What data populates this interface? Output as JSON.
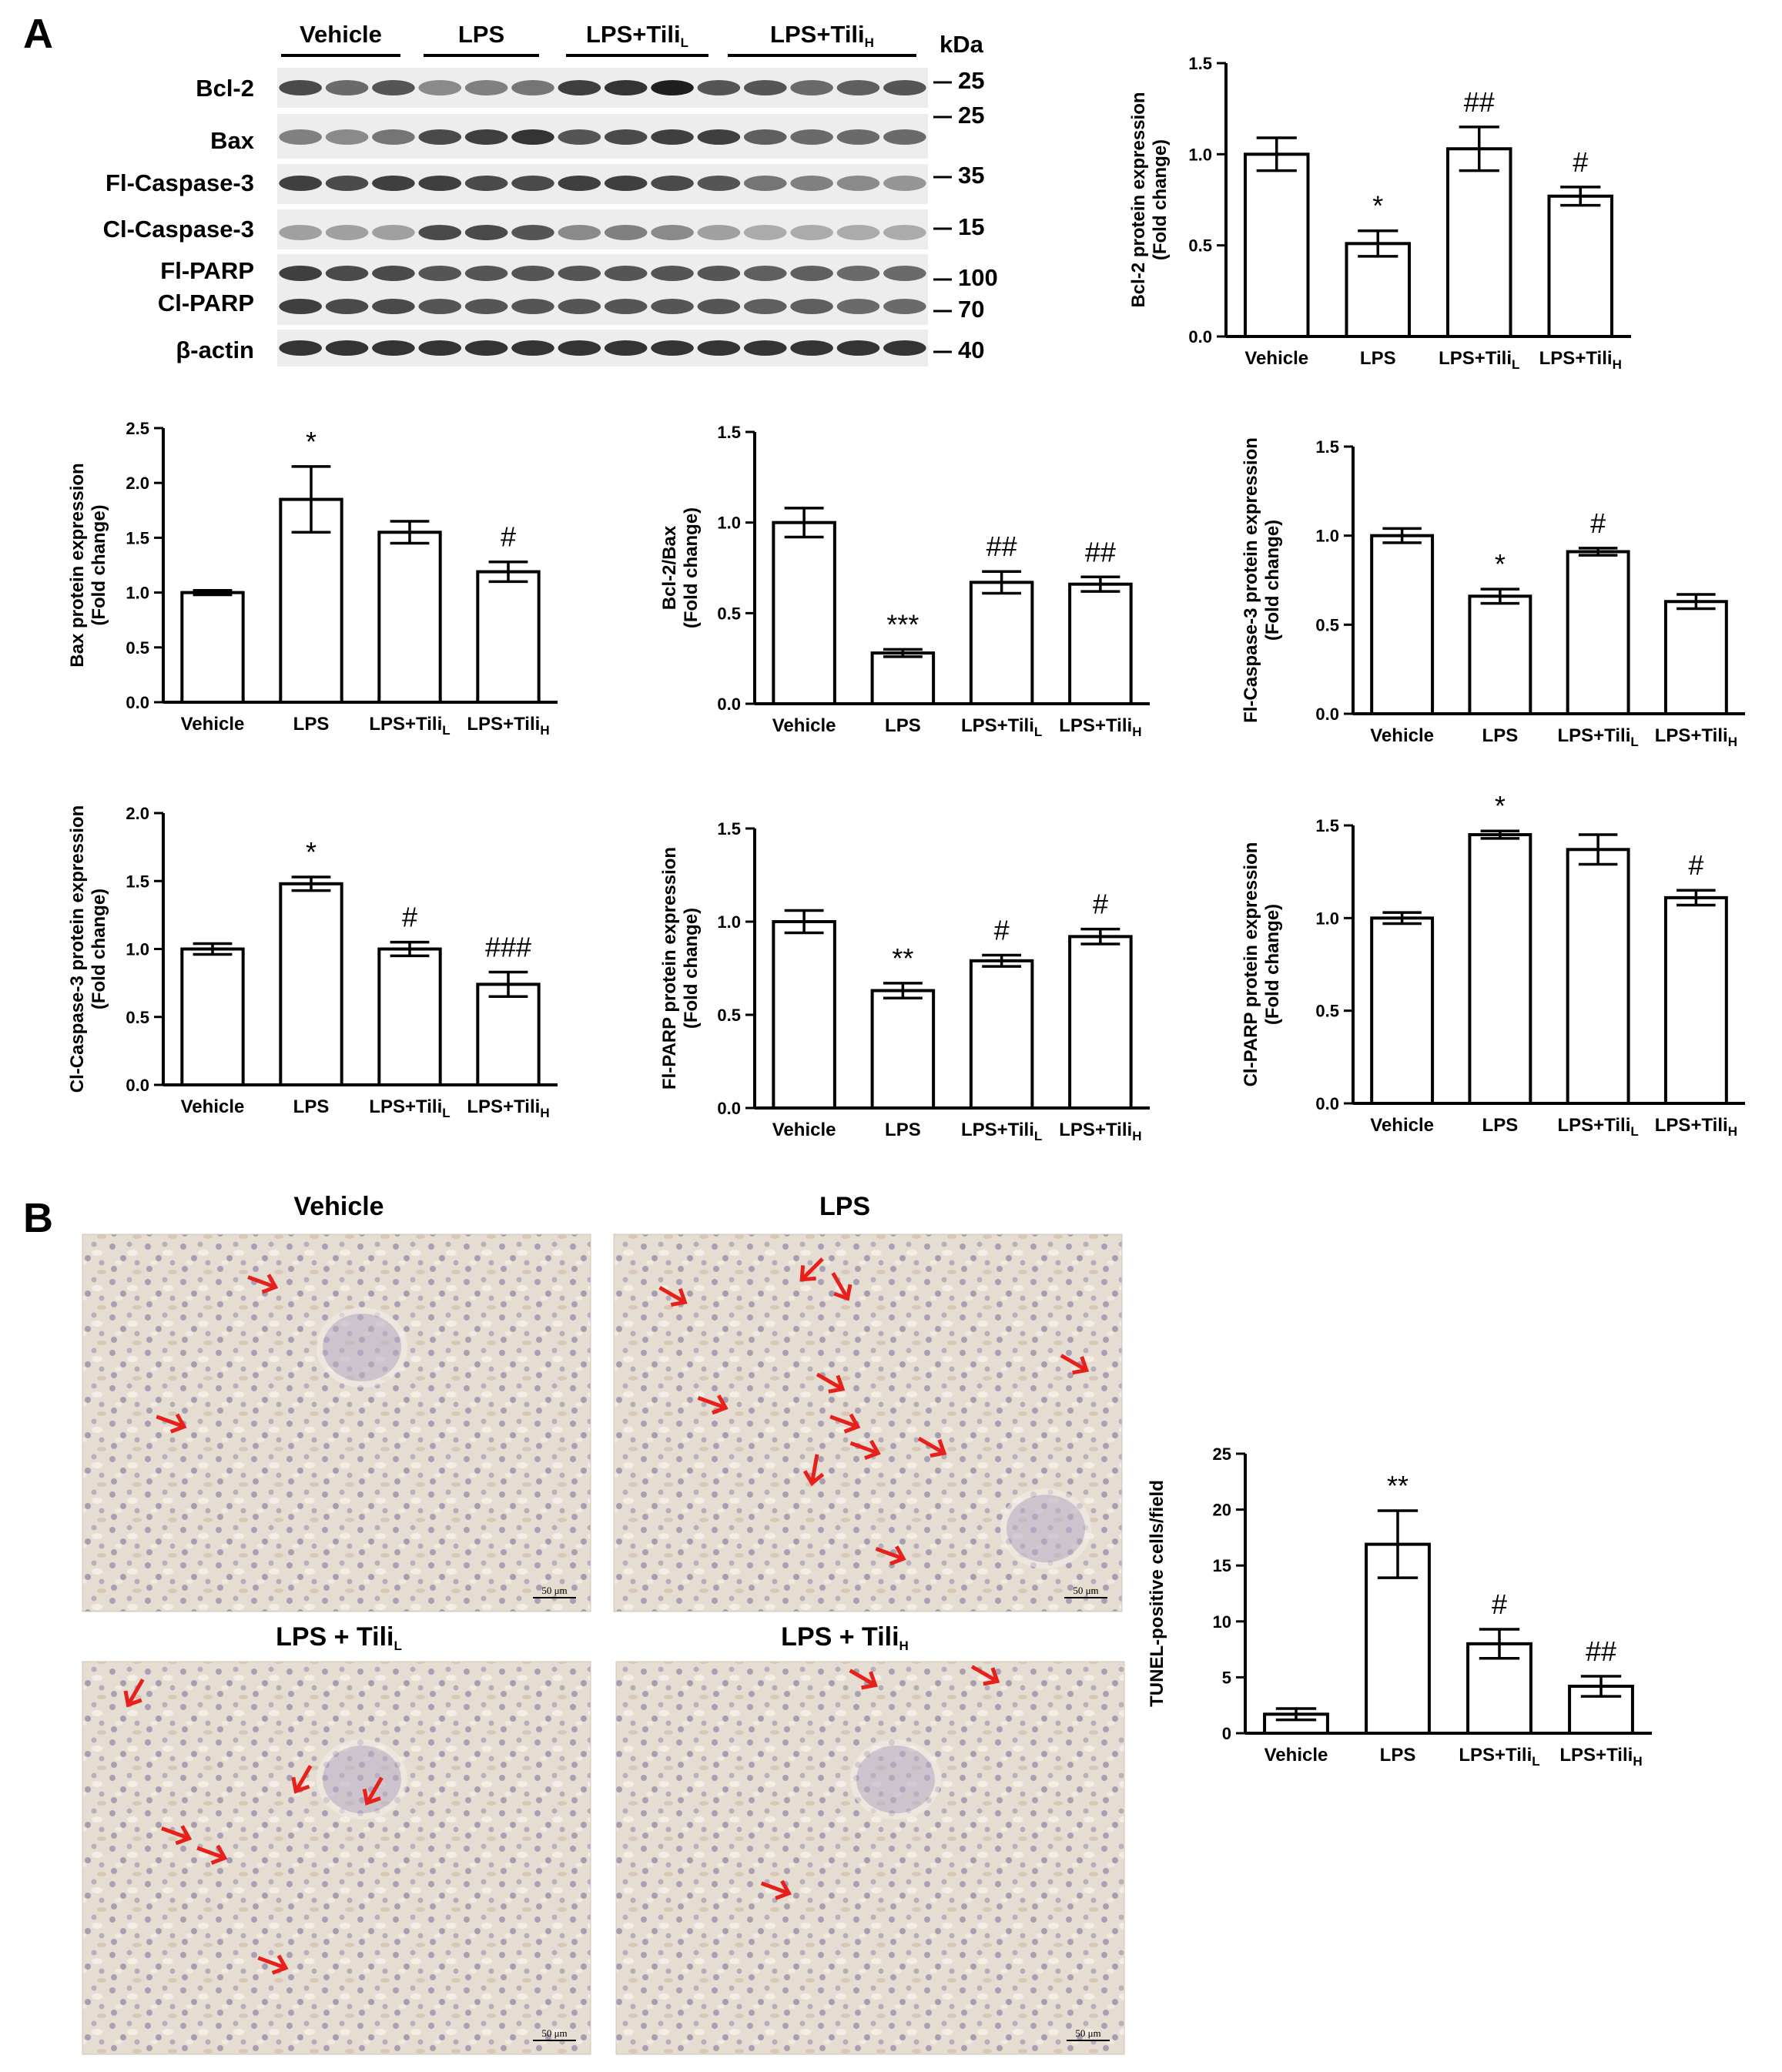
{
  "panels": {
    "a": "A",
    "b": "B"
  },
  "blot": {
    "groups": [
      {
        "main": "Vehicle",
        "sub": ""
      },
      {
        "main": "LPS",
        "sub": ""
      },
      {
        "main": "LPS+Tili",
        "sub": "L"
      },
      {
        "main": "LPS+Tili",
        "sub": "H"
      }
    ],
    "kda_label": "kDa",
    "rows": [
      {
        "label": "Bcl-2",
        "markers": [
          "25"
        ]
      },
      {
        "label": "Bax",
        "markers": [
          "25"
        ]
      },
      {
        "label": "Fl-Caspase-3",
        "markers": [
          "35"
        ]
      },
      {
        "label": "Cl-Caspase-3",
        "markers": [
          "15"
        ]
      },
      {
        "label": "Fl-PARP",
        "markers": [
          "100"
        ]
      },
      {
        "label": "Cl-PARP",
        "markers": [
          "70"
        ]
      },
      {
        "label": "β-actin",
        "markers": [
          "40"
        ]
      }
    ]
  },
  "micrographs": [
    {
      "title": "Vehicle",
      "sub": "",
      "scale": "50 μm",
      "arrows": 2
    },
    {
      "title": "LPS",
      "sub": "",
      "scale": "50 μm",
      "arrows": 11
    },
    {
      "title": "LPS + Tili",
      "sub": "L",
      "scale": "50 μm",
      "arrows": 6
    },
    {
      "title": "LPS + Tili",
      "sub": "H",
      "scale": "50 μm",
      "arrows": 3
    }
  ],
  "colors": {
    "arrow": "#e8201c",
    "tissue_bg": "#e6ddd2",
    "bar_fill": "#ffffff",
    "axis": "#000000"
  },
  "chart_data": [
    {
      "id": "bcl2",
      "type": "bar",
      "ylabel": "Bcl-2 protein expression",
      "ylabel2": "(Fold change)",
      "categories": [
        "Vehicle",
        "LPS",
        "LPS+Tili_L",
        "LPS+Tili_H"
      ],
      "values": [
        1.0,
        0.51,
        1.03,
        0.77
      ],
      "errors": [
        0.09,
        0.07,
        0.12,
        0.05
      ],
      "significance": [
        "",
        "*",
        "##",
        "#"
      ],
      "ylim": [
        0,
        1.5
      ],
      "yticks": [
        "0.0",
        "0.5",
        "1.0",
        "1.5"
      ]
    },
    {
      "id": "bax",
      "type": "bar",
      "ylabel": "Bax protein expression",
      "ylabel2": "(Fold change)",
      "categories": [
        "Vehicle",
        "LPS",
        "LPS+Tili_L",
        "LPS+Tili_H"
      ],
      "values": [
        1.0,
        1.85,
        1.55,
        1.19
      ],
      "errors": [
        0.02,
        0.3,
        0.1,
        0.09
      ],
      "significance": [
        "",
        "*",
        "",
        "#"
      ],
      "ylim": [
        0,
        2.5
      ],
      "yticks": [
        "0.0",
        "0.5",
        "1.0",
        "1.5",
        "2.0",
        "2.5"
      ]
    },
    {
      "id": "bcl2bax",
      "type": "bar",
      "ylabel": "Bcl-2/Bax",
      "ylabel2": "(Fold change)",
      "categories": [
        "Vehicle",
        "LPS",
        "LPS+Tili_L",
        "LPS+Tili_H"
      ],
      "values": [
        1.0,
        0.28,
        0.67,
        0.66
      ],
      "errors": [
        0.08,
        0.02,
        0.06,
        0.04
      ],
      "significance": [
        "",
        "***",
        "##",
        "##"
      ],
      "ylim": [
        0,
        1.5
      ],
      "yticks": [
        "0.0",
        "0.5",
        "1.0",
        "1.5"
      ]
    },
    {
      "id": "flcasp3",
      "type": "bar",
      "ylabel": "Fl-Caspase-3 protein expression",
      "ylabel2": "(Fold change)",
      "categories": [
        "Vehicle",
        "LPS",
        "LPS+Tili_L",
        "LPS+Tili_H"
      ],
      "values": [
        1.0,
        0.66,
        0.91,
        0.63
      ],
      "errors": [
        0.04,
        0.04,
        0.02,
        0.04
      ],
      "significance": [
        "",
        "*",
        "#",
        ""
      ],
      "ylim": [
        0,
        1.5
      ],
      "yticks": [
        "0.0",
        "0.5",
        "1.0",
        "1.5"
      ]
    },
    {
      "id": "clcasp3",
      "type": "bar",
      "ylabel": "Cl-Caspase-3 protein expression",
      "ylabel2": "(Fold change)",
      "categories": [
        "Vehicle",
        "LPS",
        "LPS+Tili_L",
        "LPS+Tili_H"
      ],
      "values": [
        1.0,
        1.48,
        1.0,
        0.74
      ],
      "errors": [
        0.04,
        0.05,
        0.05,
        0.09
      ],
      "significance": [
        "",
        "*",
        "#",
        "###"
      ],
      "ylim": [
        0,
        2.0
      ],
      "yticks": [
        "0.0",
        "0.5",
        "1.0",
        "1.5",
        "2.0"
      ]
    },
    {
      "id": "flparp",
      "type": "bar",
      "ylabel": "Fl-PARP protein expression",
      "ylabel2": "(Fold change)",
      "categories": [
        "Vehicle",
        "LPS",
        "LPS+Tili_L",
        "LPS+Tili_H"
      ],
      "values": [
        1.0,
        0.63,
        0.79,
        0.92
      ],
      "errors": [
        0.06,
        0.04,
        0.03,
        0.04
      ],
      "significance": [
        "",
        "**",
        "#",
        "#"
      ],
      "ylim": [
        0,
        1.5
      ],
      "yticks": [
        "0.0",
        "0.5",
        "1.0",
        "1.5"
      ]
    },
    {
      "id": "clparp",
      "type": "bar",
      "ylabel": "Cl-PARP protein expression",
      "ylabel2": "(Fold change)",
      "categories": [
        "Vehicle",
        "LPS",
        "LPS+Tili_L",
        "LPS+Tili_H"
      ],
      "values": [
        1.0,
        1.45,
        1.37,
        1.11
      ],
      "errors": [
        0.03,
        0.02,
        0.08,
        0.04
      ],
      "significance": [
        "",
        "*",
        "",
        "#"
      ],
      "ylim": [
        0,
        1.5
      ],
      "yticks": [
        "0.0",
        "0.5",
        "1.0",
        "1.5"
      ]
    },
    {
      "id": "tunel",
      "type": "bar",
      "ylabel": "TUNEL-positive cells/field",
      "ylabel2": "",
      "categories": [
        "Vehicle",
        "LPS",
        "LPS+Tili_L",
        "LPS+Tili_H"
      ],
      "values": [
        1.7,
        16.9,
        8.0,
        4.2
      ],
      "errors": [
        0.5,
        3.0,
        1.3,
        0.9
      ],
      "significance": [
        "",
        "**",
        "#",
        "##"
      ],
      "ylim": [
        0,
        25
      ],
      "yticks": [
        "0",
        "5",
        "10",
        "15",
        "20",
        "25"
      ]
    }
  ]
}
